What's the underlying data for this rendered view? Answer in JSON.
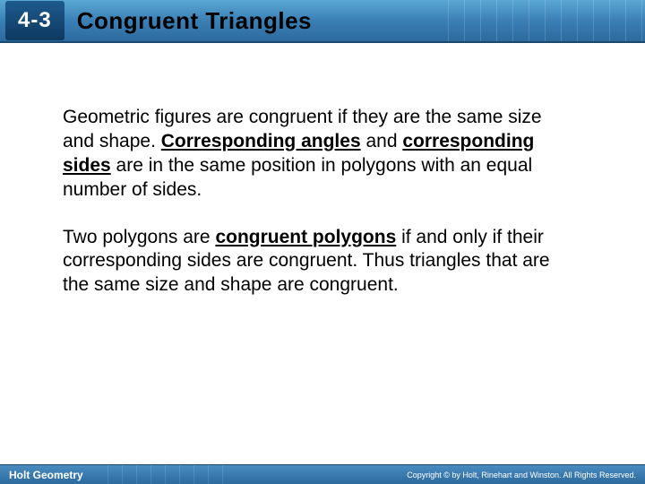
{
  "header": {
    "section_number": "4-3",
    "title": "Congruent Triangles",
    "bg_gradient_top": "#5ba8d4",
    "bg_gradient_bottom": "#2d6a9e",
    "badge_bg_top": "#1e5a8e",
    "badge_bg_bottom": "#0d3a60",
    "title_color": "#000000",
    "title_fontsize": 26
  },
  "body": {
    "para1": {
      "seg1": "Geometric figures are congruent if they are the same size and shape. ",
      "term1": "Corresponding angles",
      "seg2": " and ",
      "term2": "corresponding sides",
      "seg3": " are in the same position in polygons with an equal number of sides."
    },
    "para2": {
      "seg1": "Two polygons are ",
      "term1": "congruent polygons",
      "seg2": " if and only if their corresponding sides are congruent. Thus triangles that are the same size and shape are congruent."
    },
    "fontsize": 21,
    "text_color": "#000000"
  },
  "footer": {
    "brand": "Holt Geometry",
    "copyright": "Copyright © by Holt, Rinehart and Winston. All Rights Reserved.",
    "bg_gradient_top": "#4a8cc0",
    "bg_gradient_bottom": "#2d6a9e",
    "text_color": "#ffffff"
  }
}
